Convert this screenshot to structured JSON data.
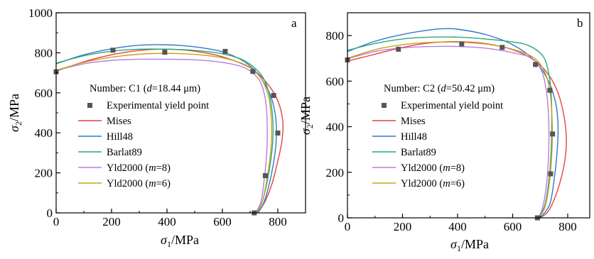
{
  "chart_data": [
    {
      "type": "line",
      "panel_label": "a",
      "info": {
        "prefix": "Number: C1 (",
        "var": "d",
        "value": "=18.44 μm)"
      },
      "xlabel": {
        "sym": "σ",
        "sub": "1",
        "unit": "/MPa"
      },
      "ylabel": {
        "sym": "σ",
        "sub": "2",
        "unit": "/MPa"
      },
      "xlim": [
        0,
        900
      ],
      "ylim": [
        0,
        1000
      ],
      "xticks": [
        0,
        200,
        400,
        600,
        800
      ],
      "xtick_labels": [
        "0",
        "200",
        "400",
        "600",
        "800"
      ],
      "yticks": [
        0,
        200,
        400,
        600,
        800,
        1000
      ],
      "ytick_labels": [
        "0",
        "200",
        "400",
        "600",
        "800",
        "1000"
      ],
      "experimental": {
        "name": "Experimental yield point",
        "color": "#555555",
        "points": [
          [
            0,
            705
          ],
          [
            205,
            813
          ],
          [
            392,
            803
          ],
          [
            610,
            807
          ],
          [
            710,
            707
          ],
          [
            785,
            587
          ],
          [
            800,
            399
          ],
          [
            755,
            186
          ],
          [
            715,
            0
          ]
        ]
      },
      "series": [
        {
          "name": "Mises",
          "italic_part": "",
          "suffix": "",
          "color": "#e8413c",
          "points": [
            [
              0,
              708
            ],
            [
              100,
              755
            ],
            [
              200,
              790
            ],
            [
              300,
              812
            ],
            [
              400,
              818
            ],
            [
              500,
              808
            ],
            [
              600,
              780
            ],
            [
              700,
              725
            ],
            [
              760,
              650
            ],
            [
              800,
              560
            ],
            [
              818,
              460
            ],
            [
              815,
              360
            ],
            [
              800,
              260
            ],
            [
              780,
              150
            ],
            [
              755,
              60
            ],
            [
              728,
              0
            ]
          ]
        },
        {
          "name": "Hill48",
          "italic_part": "",
          "suffix": "",
          "color": "#2e79c8",
          "points": [
            [
              0,
              745
            ],
            [
              100,
              790
            ],
            [
              200,
              820
            ],
            [
              300,
              838
            ],
            [
              400,
              840
            ],
            [
              500,
              830
            ],
            [
              600,
              805
            ],
            [
              680,
              755
            ],
            [
              730,
              690
            ],
            [
              770,
              600
            ],
            [
              790,
              500
            ],
            [
              795,
              400
            ],
            [
              790,
              300
            ],
            [
              775,
              180
            ],
            [
              752,
              60
            ],
            [
              728,
              0
            ]
          ]
        },
        {
          "name": "Barlat89",
          "italic_part": "",
          "suffix": "",
          "color": "#2ea67a",
          "points": [
            [
              0,
              748
            ],
            [
              100,
              785
            ],
            [
              200,
              808
            ],
            [
              300,
              818
            ],
            [
              400,
              818
            ],
            [
              500,
              812
            ],
            [
              600,
              795
            ],
            [
              680,
              760
            ],
            [
              740,
              690
            ],
            [
              768,
              600
            ],
            [
              780,
              500
            ],
            [
              783,
              400
            ],
            [
              778,
              300
            ],
            [
              765,
              180
            ],
            [
              745,
              60
            ],
            [
              725,
              0
            ]
          ]
        },
        {
          "name": "Yld2000 (",
          "italic_part": "m",
          "suffix": "=8)",
          "color": "#b77ee0",
          "points": [
            [
              0,
              712
            ],
            [
              100,
              745
            ],
            [
              200,
              762
            ],
            [
              300,
              768
            ],
            [
              400,
              768
            ],
            [
              500,
              765
            ],
            [
              600,
              752
            ],
            [
              680,
              725
            ],
            [
              730,
              670
            ],
            [
              752,
              590
            ],
            [
              760,
              500
            ],
            [
              762,
              400
            ],
            [
              760,
              300
            ],
            [
              752,
              180
            ],
            [
              740,
              60
            ],
            [
              720,
              0
            ]
          ]
        },
        {
          "name": "Yld2000 (",
          "italic_part": "m",
          "suffix": "=6)",
          "color": "#c9a21a",
          "points": [
            [
              0,
              712
            ],
            [
              100,
              752
            ],
            [
              200,
              778
            ],
            [
              300,
              793
            ],
            [
              400,
              797
            ],
            [
              500,
              792
            ],
            [
              600,
              775
            ],
            [
              690,
              735
            ],
            [
              740,
              670
            ],
            [
              765,
              590
            ],
            [
              775,
              500
            ],
            [
              778,
              400
            ],
            [
              774,
              300
            ],
            [
              762,
              180
            ],
            [
              745,
              60
            ],
            [
              722,
              0
            ]
          ]
        }
      ]
    },
    {
      "type": "line",
      "panel_label": "b",
      "info": {
        "prefix": "Number: C2 (",
        "var": "d",
        "value": "=50.42 μm)"
      },
      "xlabel": {
        "sym": "σ",
        "sub": "1",
        "unit": "/MPa"
      },
      "ylabel": {
        "sym": "σ",
        "sub": "2",
        "unit": "/MPa"
      },
      "xlim": [
        0,
        880
      ],
      "ylim": [
        0,
        900
      ],
      "xticks": [
        0,
        200,
        400,
        600,
        800
      ],
      "xtick_labels": [
        "0",
        "200",
        "400",
        "600",
        "800"
      ],
      "yticks": [
        0,
        200,
        400,
        600,
        800
      ],
      "ytick_labels": [
        "0",
        "200",
        "400",
        "600",
        "800"
      ],
      "experimental": {
        "name": "Experimental yield point",
        "color": "#555555",
        "points": [
          [
            0,
            693
          ],
          [
            185,
            740
          ],
          [
            415,
            763
          ],
          [
            562,
            748
          ],
          [
            683,
            673
          ],
          [
            735,
            560
          ],
          [
            745,
            368
          ],
          [
            738,
            193
          ],
          [
            690,
            0
          ]
        ]
      },
      "series": [
        {
          "name": "Mises",
          "italic_part": "",
          "suffix": "",
          "color": "#e8413c",
          "points": [
            [
              0,
              688
            ],
            [
              100,
              718
            ],
            [
              200,
              748
            ],
            [
              300,
              768
            ],
            [
              400,
              773
            ],
            [
              500,
              765
            ],
            [
              600,
              738
            ],
            [
              680,
              690
            ],
            [
              735,
              620
            ],
            [
              770,
              530
            ],
            [
              790,
              420
            ],
            [
              795,
              320
            ],
            [
              785,
              220
            ],
            [
              760,
              110
            ],
            [
              730,
              30
            ],
            [
              700,
              0
            ]
          ]
        },
        {
          "name": "Hill48",
          "italic_part": "",
          "suffix": "",
          "color": "#2e79c8",
          "points": [
            [
              0,
              730
            ],
            [
              100,
              775
            ],
            [
              200,
              805
            ],
            [
              300,
              825
            ],
            [
              350,
              830
            ],
            [
              400,
              828
            ],
            [
              500,
              805
            ],
            [
              600,
              760
            ],
            [
              680,
              690
            ],
            [
              730,
              600
            ],
            [
              757,
              500
            ],
            [
              765,
              400
            ],
            [
              762,
              300
            ],
            [
              752,
              180
            ],
            [
              735,
              60
            ],
            [
              700,
              0
            ]
          ]
        },
        {
          "name": "Barlat89",
          "italic_part": "",
          "suffix": "",
          "color": "#2ea67a",
          "points": [
            [
              0,
              735
            ],
            [
              100,
              765
            ],
            [
              200,
              785
            ],
            [
              300,
              793
            ],
            [
              400,
              793
            ],
            [
              500,
              785
            ],
            [
              600,
              772
            ],
            [
              660,
              755
            ],
            [
              710,
              710
            ],
            [
              730,
              640
            ],
            [
              740,
              540
            ],
            [
              742,
              420
            ],
            [
              740,
              300
            ],
            [
              733,
              180
            ],
            [
              718,
              60
            ],
            [
              695,
              0
            ]
          ]
        },
        {
          "name": "Yld2000 (",
          "italic_part": "m",
          "suffix": "=8)",
          "color": "#b77ee0",
          "points": [
            [
              0,
              698
            ],
            [
              100,
              730
            ],
            [
              200,
              746
            ],
            [
              300,
              752
            ],
            [
              400,
              752
            ],
            [
              500,
              745
            ],
            [
              600,
              725
            ],
            [
              670,
              700
            ],
            [
              705,
              645
            ],
            [
              722,
              560
            ],
            [
              730,
              460
            ],
            [
              732,
              360
            ],
            [
              730,
              260
            ],
            [
              724,
              160
            ],
            [
              712,
              60
            ],
            [
              695,
              0
            ]
          ]
        },
        {
          "name": "Yld2000 (",
          "italic_part": "m",
          "suffix": "=6)",
          "color": "#c9a21a",
          "points": [
            [
              0,
              700
            ],
            [
              100,
              738
            ],
            [
              200,
              760
            ],
            [
              300,
              770
            ],
            [
              400,
              771
            ],
            [
              500,
              763
            ],
            [
              600,
              740
            ],
            [
              680,
              700
            ],
            [
              720,
              630
            ],
            [
              737,
              540
            ],
            [
              743,
              440
            ],
            [
              744,
              340
            ],
            [
              740,
              240
            ],
            [
              732,
              140
            ],
            [
              718,
              50
            ],
            [
              697,
              0
            ]
          ]
        }
      ]
    }
  ]
}
